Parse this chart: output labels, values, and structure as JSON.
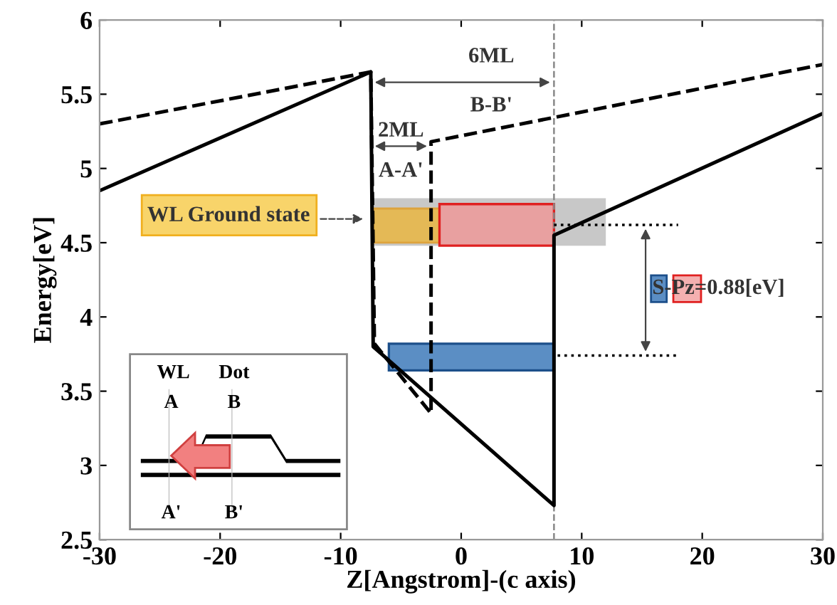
{
  "chart_data": {
    "type": "line",
    "xlabel": "Z[Angstrom]-(c axis)",
    "ylabel": "Energy[eV]",
    "xlim": [
      -30,
      30
    ],
    "xticks": [
      -30,
      -20,
      -10,
      0,
      10,
      20,
      30
    ],
    "ylim": [
      2.5,
      6
    ],
    "yticks": [
      2.5,
      3,
      3.5,
      4,
      4.5,
      5,
      5.5,
      6
    ],
    "grid": false,
    "legend": false,
    "marker": "none",
    "series": [
      {
        "color": "#000000",
        "line_style": "solid",
        "x": [
          -30,
          -7.5,
          -7.3,
          7.7,
          7.7,
          30
        ],
        "values": [
          4.85,
          5.65,
          3.8,
          2.73,
          4.55,
          5.37
        ]
      },
      {
        "color": "#000000",
        "line_style": "dashed",
        "x": [
          -30,
          -7.5,
          -7.2,
          -2.5,
          -2.5,
          30
        ],
        "values": [
          5.3,
          5.65,
          3.82,
          3.35,
          5.18,
          5.7
        ]
      }
    ],
    "annotations": [
      "6ML",
      "B-B'",
      "2ML",
      "A-A'",
      "WL Ground state",
      "S-Pz=0.88[eV]",
      "WL",
      "Dot",
      "A",
      "B",
      "A'",
      "B'"
    ],
    "ref_lines": [
      {
        "axis": "x",
        "value": 7.7,
        "color": "#888888",
        "line_style": "dashed"
      }
    ]
  }
}
